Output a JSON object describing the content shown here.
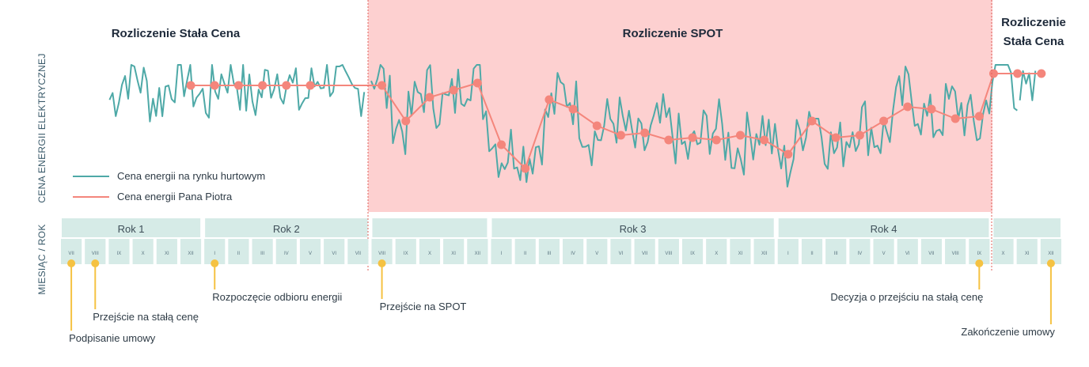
{
  "chart_data": {
    "type": "line",
    "ylabel": "CENA ENERGII ELEKTRYCZNEJ",
    "timeline_label": "MIESIĄC / ROK",
    "regions": [
      {
        "title": "Rozliczenie Stała Cena",
        "type": "fixed"
      },
      {
        "title": "Rozliczenie SPOT",
        "type": "spot"
      },
      {
        "title_lines": [
          "Rozliczenie",
          "Stała Cena"
        ],
        "type": "fixed"
      }
    ],
    "legend": [
      {
        "name": "Cena energii na rynku hurtowym",
        "color": "#4ea9a7"
      },
      {
        "name": "Cena energii Pana Piotra",
        "color": "#f4867c"
      }
    ],
    "years": [
      {
        "label": "Rok 1",
        "months": [
          "VII",
          "VIII",
          "IX",
          "X",
          "XI",
          "XII"
        ]
      },
      {
        "label": "Rok 2",
        "months": [
          "I",
          "II",
          "III",
          "IV",
          "V",
          "VI",
          "VII"
        ]
      },
      {
        "label": "",
        "months": [
          "VIII",
          "IX",
          "X",
          "XI",
          "XII"
        ]
      },
      {
        "label": "Rok 3",
        "months": [
          "I",
          "II",
          "III",
          "IV",
          "V",
          "VI",
          "VII",
          "VIII",
          "IX",
          "X",
          "XI",
          "XII"
        ]
      },
      {
        "label": "Rok 4",
        "months": [
          "I",
          "II",
          "III",
          "IV",
          "V",
          "VI",
          "VII",
          "VIII",
          "IX"
        ]
      },
      {
        "label": "",
        "months": [
          "X",
          "XI",
          "XII"
        ]
      }
    ],
    "client_price": [
      [
        5,
        0.0
      ],
      [
        6,
        0.0
      ],
      [
        7,
        0.0
      ],
      [
        8,
        0.0
      ],
      [
        9,
        0.0
      ],
      [
        10,
        0.0
      ],
      [
        13,
        0.0
      ],
      [
        14,
        -1.5
      ],
      [
        15,
        -0.5
      ],
      [
        16,
        -0.2
      ],
      [
        17,
        0.1
      ],
      [
        18,
        -2.5
      ],
      [
        19,
        -3.5
      ],
      [
        20,
        -0.6
      ],
      [
        21,
        -1.0
      ],
      [
        22,
        -1.7
      ],
      [
        23,
        -2.1
      ],
      [
        24,
        -2.0
      ],
      [
        25,
        -2.3
      ],
      [
        26,
        -2.2
      ],
      [
        27,
        -2.3
      ],
      [
        28,
        -2.1
      ],
      [
        29,
        -2.3
      ],
      [
        30,
        -2.9
      ],
      [
        31,
        -1.5
      ],
      [
        32,
        -2.2
      ],
      [
        33,
        -2.1
      ],
      [
        34,
        -1.5
      ],
      [
        35,
        -0.9
      ],
      [
        36,
        -1.0
      ],
      [
        37,
        -1.4
      ],
      [
        38,
        -1.3
      ],
      [
        38.6,
        0.5
      ],
      [
        39.6,
        0.5
      ],
      [
        40.6,
        0.5
      ]
    ],
    "wholesale_price_summary": "noisy series oscillating around the client price; dips around month 18-19 (Rok 3)",
    "events": [
      {
        "label": "Podpisanie umowy",
        "month_index": 0
      },
      {
        "label": "Przejście na stałą cenę",
        "month_index": 1
      },
      {
        "label": "Rozpoczęcie odbioru energii",
        "month_index": 6
      },
      {
        "label": "Przejście na SPOT",
        "month_index": 13
      },
      {
        "label": "Decyzja o przejściu na stałą cenę",
        "month_index": 38
      },
      {
        "label": "Zakończenie umowy",
        "month_index": 41
      }
    ],
    "colors": {
      "spot_background": "#fdd0d0",
      "wholesale": "#4ea9a7",
      "client": "#f4867c",
      "timeline_band": "#d6ebe7",
      "event_marker": "#f5c242",
      "boundary": "#e0605a"
    }
  }
}
